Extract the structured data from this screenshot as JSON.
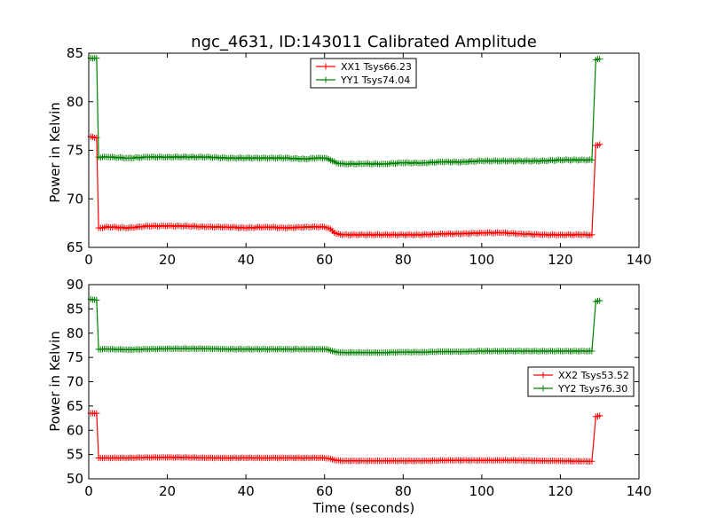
{
  "chart_data": [
    {
      "type": "line",
      "title": "ngc_4631, ID:143011 Calibrated Amplitude",
      "xlabel": "",
      "ylabel": "Power in Kelvin",
      "xlim": [
        0,
        140
      ],
      "ylim": [
        65,
        85
      ],
      "xticks": [
        "0",
        "20",
        "40",
        "60",
        "80",
        "100",
        "120",
        "140"
      ],
      "yticks": [
        "65",
        "70",
        "75",
        "80",
        "85"
      ],
      "legend_position": "top-center",
      "series": [
        {
          "name": "XX1 Tsys66.23",
          "color": "#ff0000",
          "x": [
            0.5,
            2.0,
            2.5,
            5,
            10,
            15,
            20,
            25,
            30,
            35,
            40,
            45,
            50,
            55,
            58,
            60,
            61,
            62,
            63,
            65,
            70,
            75,
            80,
            85,
            90,
            95,
            100,
            105,
            110,
            115,
            120,
            125,
            128,
            129,
            130
          ],
          "values": [
            76.4,
            76.3,
            67.0,
            67.1,
            67.0,
            67.2,
            67.2,
            67.2,
            67.1,
            67.1,
            67.0,
            67.1,
            67.0,
            67.1,
            67.1,
            67.1,
            67.0,
            66.7,
            66.4,
            66.3,
            66.3,
            66.3,
            66.3,
            66.3,
            66.4,
            66.4,
            66.5,
            66.5,
            66.4,
            66.3,
            66.3,
            66.3,
            66.3,
            75.5,
            75.6
          ]
        },
        {
          "name": "YY1 Tsys74.04",
          "color": "#008000",
          "x": [
            0.5,
            2.0,
            2.5,
            5,
            10,
            15,
            20,
            25,
            30,
            35,
            40,
            45,
            50,
            55,
            58,
            60,
            61,
            62,
            63,
            65,
            70,
            75,
            80,
            85,
            90,
            95,
            100,
            105,
            110,
            115,
            120,
            125,
            128,
            129,
            130
          ],
          "values": [
            84.5,
            84.5,
            74.3,
            74.3,
            74.2,
            74.3,
            74.3,
            74.3,
            74.3,
            74.2,
            74.2,
            74.2,
            74.2,
            74.1,
            74.2,
            74.2,
            74.1,
            73.9,
            73.7,
            73.6,
            73.6,
            73.6,
            73.7,
            73.7,
            73.8,
            73.8,
            73.9,
            73.9,
            73.9,
            73.9,
            74.0,
            74.0,
            74.0,
            84.3,
            84.4
          ]
        }
      ]
    },
    {
      "type": "line",
      "title": "",
      "xlabel": "Time (seconds)",
      "ylabel": "Power in Kelvin",
      "xlim": [
        0,
        140
      ],
      "ylim": [
        50,
        90
      ],
      "xticks": [
        "0",
        "20",
        "40",
        "60",
        "80",
        "100",
        "120",
        "140"
      ],
      "yticks": [
        "50",
        "55",
        "60",
        "65",
        "70",
        "75",
        "80",
        "85",
        "90"
      ],
      "legend_position": "center-right",
      "series": [
        {
          "name": "XX2 Tsys53.52",
          "color": "#ff0000",
          "x": [
            0.5,
            2.0,
            2.5,
            5,
            10,
            15,
            20,
            25,
            30,
            35,
            40,
            45,
            50,
            55,
            58,
            60,
            61,
            62,
            63,
            65,
            70,
            75,
            80,
            85,
            90,
            95,
            100,
            105,
            110,
            115,
            120,
            125,
            128,
            129,
            130
          ],
          "values": [
            63.5,
            63.5,
            54.3,
            54.3,
            54.3,
            54.4,
            54.4,
            54.4,
            54.3,
            54.3,
            54.3,
            54.3,
            54.3,
            54.3,
            54.3,
            54.3,
            54.2,
            54.0,
            53.8,
            53.7,
            53.7,
            53.7,
            53.7,
            53.7,
            53.8,
            53.8,
            53.8,
            53.8,
            53.8,
            53.7,
            53.7,
            53.6,
            53.6,
            62.8,
            63.0
          ]
        },
        {
          "name": "YY2 Tsys76.30",
          "color": "#008000",
          "x": [
            0.5,
            2.0,
            2.5,
            5,
            10,
            15,
            20,
            25,
            30,
            35,
            40,
            45,
            50,
            55,
            58,
            60,
            61,
            62,
            63,
            65,
            70,
            75,
            80,
            85,
            90,
            95,
            100,
            105,
            110,
            115,
            120,
            125,
            128,
            129,
            130
          ],
          "values": [
            87.0,
            86.8,
            76.7,
            76.7,
            76.6,
            76.7,
            76.8,
            76.8,
            76.8,
            76.7,
            76.7,
            76.7,
            76.7,
            76.7,
            76.7,
            76.7,
            76.6,
            76.3,
            76.1,
            76.0,
            76.0,
            76.0,
            76.1,
            76.1,
            76.2,
            76.2,
            76.3,
            76.3,
            76.3,
            76.3,
            76.3,
            76.3,
            76.3,
            86.5,
            86.7
          ]
        }
      ]
    }
  ]
}
